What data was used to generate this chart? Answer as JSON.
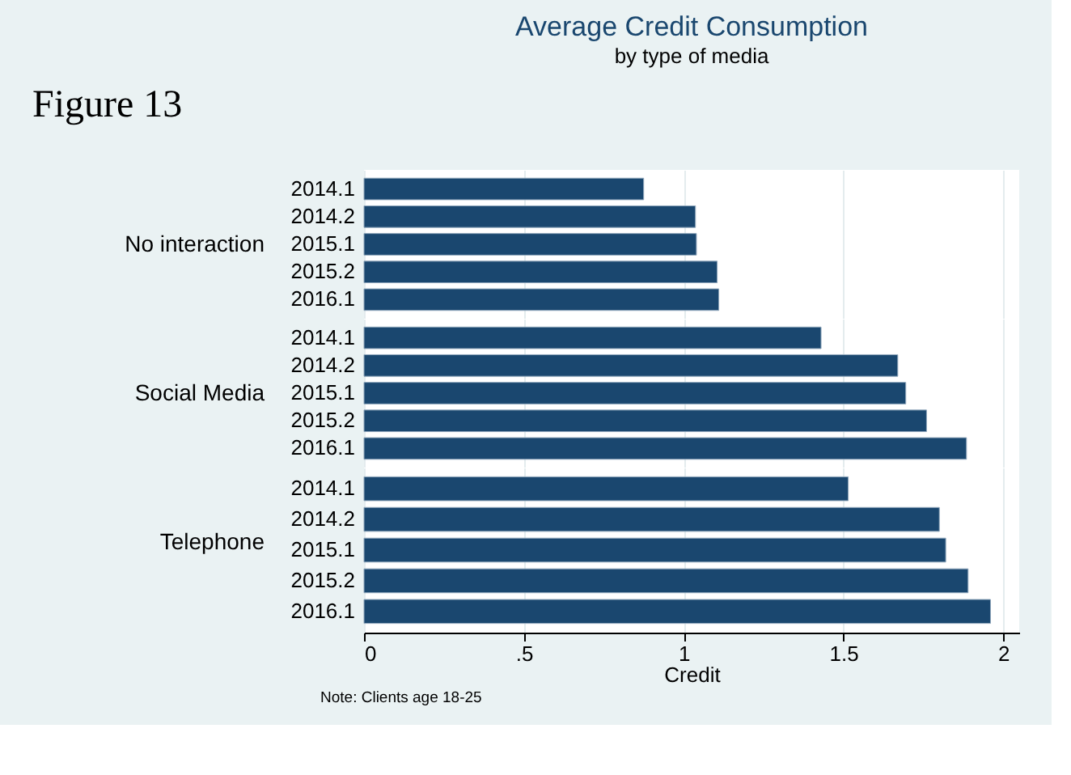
{
  "chart_data": [
    {
      "type": "bar",
      "orientation": "horizontal",
      "title": "Average Credit Consumption",
      "subtitle": "by type of media",
      "ylabel": "No interaction",
      "annotations": [
        "Figure 13"
      ],
      "categories": [
        "2014.1",
        "2014.2",
        "2015.1",
        "2015.2",
        "2016.1"
      ],
      "series": [
        {
          "color": "#1a476f",
          "values": [
            0.875,
            1.037,
            1.04,
            1.105,
            1.11
          ]
        }
      ],
      "xlim": [
        0,
        2.05
      ],
      "grid": "x",
      "legend": false,
      "tick_labels": "y"
    },
    {
      "type": "bar",
      "orientation": "horizontal",
      "ylabel": "Social Media",
      "categories": [
        "2014.1",
        "2014.2",
        "2015.1",
        "2015.2",
        "2016.1"
      ],
      "series": [
        {
          "color": "#1a476f",
          "values": [
            1.43,
            1.67,
            1.695,
            1.76,
            1.885
          ]
        }
      ],
      "xlim": [
        0,
        2.05
      ],
      "grid": "x",
      "legend": false,
      "tick_labels": "y"
    },
    {
      "type": "bar",
      "orientation": "horizontal",
      "ylabel": "Telephone",
      "xlabel": "Credit",
      "annotations": [
        "Note: Clients age 18-25"
      ],
      "categories": [
        "2014.1",
        "2014.2",
        "2015.1",
        "2015.2",
        "2016.1"
      ],
      "series": [
        {
          "color": "#1a476f",
          "values": [
            1.515,
            1.8,
            1.82,
            1.89,
            1.96
          ]
        }
      ],
      "xlim": [
        0,
        2.05
      ],
      "xticks": [
        0,
        {
          "value": 0.5,
          "label": ".5"
        },
        1,
        1.5,
        2
      ],
      "grid": "x",
      "legend": false
    }
  ]
}
